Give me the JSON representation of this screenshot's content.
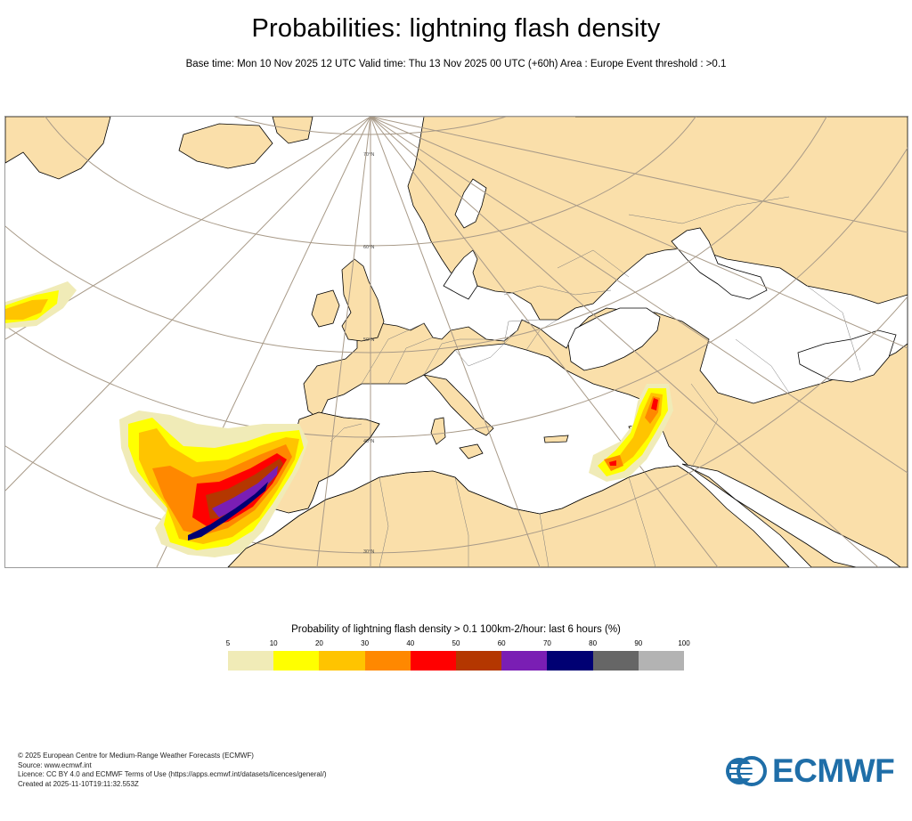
{
  "header": {
    "title": "Probabilities: lightning flash density",
    "subtitle": "Base time: Mon 10 Nov 2025 12 UTC Valid time: Thu 13 Nov 2025 00 UTC (+60h) Area : Europe Event threshold : >0.1"
  },
  "map": {
    "region": "Europe",
    "latitude_labels": [
      "70°N",
      "60°N",
      "50°N",
      "40°N",
      "30°N"
    ],
    "colors": {
      "land": "#fadfaa",
      "sea": "#ffffff",
      "coastline": "#000000",
      "graticule": "#a89a88",
      "borders": "#6a6a6a"
    }
  },
  "legend": {
    "title": "Probability of lightning flash density > 0.1 100km-2/hour: last 6 hours (%)",
    "ticks": [
      "5",
      "10",
      "20",
      "30",
      "40",
      "50",
      "60",
      "70",
      "80",
      "90",
      "100"
    ],
    "colors": [
      "#f0ebb7",
      "#ffff00",
      "#ffc400",
      "#ff8800",
      "#ff0000",
      "#b43700",
      "#7a1eb4",
      "#000073",
      "#666666",
      "#b3b3b3"
    ]
  },
  "footer": {
    "lines": [
      "© 2025 European Centre for Medium-Range Weather Forecasts (ECMWF)",
      "Source: www.ecmwf.int",
      "Licence: CC BY 4.0 and ECMWF Terms of Use (https://apps.ecmwf.int/datasets/licences/general/)",
      "Created at 2025-11-10T19:11:32.553Z"
    ]
  },
  "logo": {
    "text": "ECMWF",
    "color": "#1f6ea8"
  }
}
